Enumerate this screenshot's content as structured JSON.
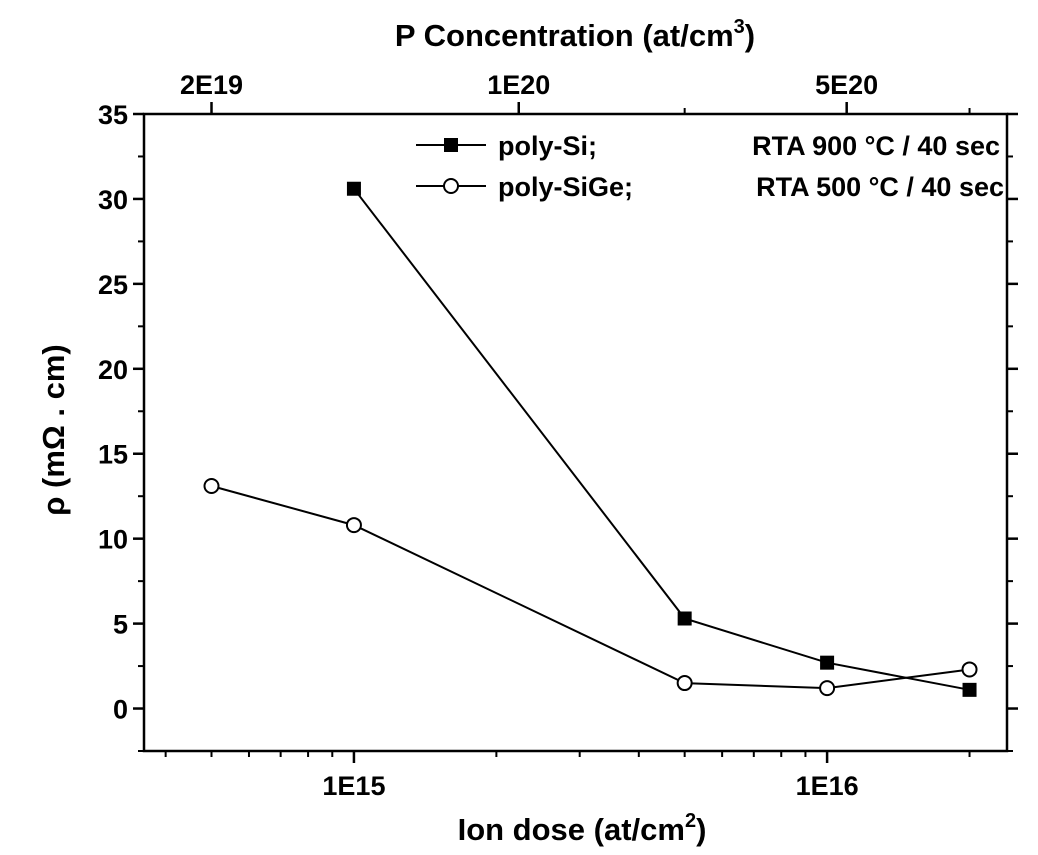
{
  "chart_data": {
    "type": "line",
    "title": "",
    "top_axis": {
      "label": "P Concentration (at/cm",
      "label_sup": "3",
      "label_end": ")",
      "ticks": [
        {
          "label": "2E19",
          "at_dose": 500000000000000.0
        },
        {
          "label": "1E20",
          "at_dose": 2230000000000000.0
        },
        {
          "label": "5E20",
          "at_dose": 1.1e+16
        }
      ]
    },
    "x_axis": {
      "label": "Ion dose (at/cm",
      "label_sup": "2",
      "label_end": ")",
      "scale": "log",
      "range": [
        360000000000000.0,
        2.4e+16
      ],
      "major_ticks": [
        1000000000000000.0,
        1e+16
      ],
      "major_tick_labels": [
        "1E15",
        "1E16"
      ]
    },
    "y_axis": {
      "label": "ρ (mΩ . cm)",
      "range": [
        -2.5,
        35
      ],
      "ticks": [
        0,
        5,
        10,
        15,
        20,
        25,
        30,
        35
      ],
      "tick_labels": [
        "0",
        "5",
        "10",
        "15",
        "20",
        "25",
        "30",
        "35"
      ]
    },
    "grid": false,
    "legend_position": "top-right",
    "series": [
      {
        "name": "poly-Si;",
        "condition": "RTA 900 °C / 40 sec",
        "marker": "filled-square",
        "x": [
          1000000000000000.0,
          5000000000000000.0,
          1e+16,
          2e+16
        ],
        "y": [
          30.6,
          5.3,
          2.7,
          1.1
        ]
      },
      {
        "name": "poly-SiGe;",
        "condition": "RTA 500 °C / 40 sec",
        "marker": "open-circle",
        "x": [
          500000000000000.0,
          1000000000000000.0,
          5000000000000000.0,
          1e+16,
          2e+16
        ],
        "y": [
          13.1,
          10.8,
          1.5,
          1.2,
          2.3
        ]
      }
    ]
  }
}
